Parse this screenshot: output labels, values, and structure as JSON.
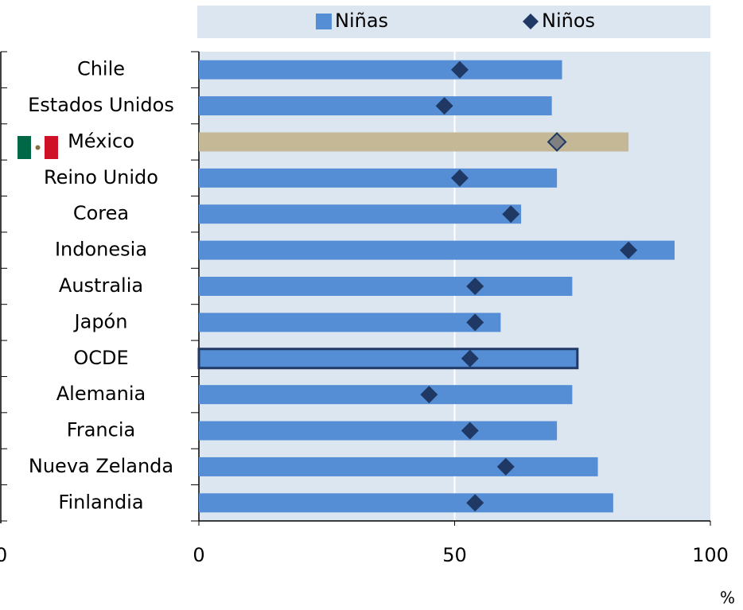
{
  "chart_data": {
    "type": "bar",
    "orientation": "horizontal",
    "categories": [
      "Chile",
      "Estados Unidos",
      "México",
      "Reino Unido",
      "Corea",
      "Indonesia",
      "Australia",
      "Japón",
      "OCDE",
      "Alemania",
      "Francia",
      "Nueva Zelanda",
      "Finlandia"
    ],
    "series": [
      {
        "name": "Niñas",
        "color": "#558ed5",
        "marker": "bar",
        "values": [
          71,
          69,
          84,
          70,
          63,
          93,
          73,
          59,
          74,
          73,
          70,
          78,
          81
        ]
      },
      {
        "name": "Niños",
        "color": "#1f3864",
        "marker": "diamond",
        "values": [
          51,
          48,
          70,
          51,
          61,
          84,
          54,
          54,
          53,
          45,
          53,
          60,
          54
        ]
      }
    ],
    "highlight": {
      "category": "México",
      "bar_color": "#c4b896",
      "marker_color": "#808080"
    },
    "outlined": {
      "category": "OCDE",
      "color": "#1f3864"
    },
    "xlim": [
      0,
      100
    ],
    "xticks": [
      0,
      50,
      100
    ],
    "grid": true,
    "x_unit": "%",
    "cropped_axis_tick": "0",
    "legend": "top"
  }
}
